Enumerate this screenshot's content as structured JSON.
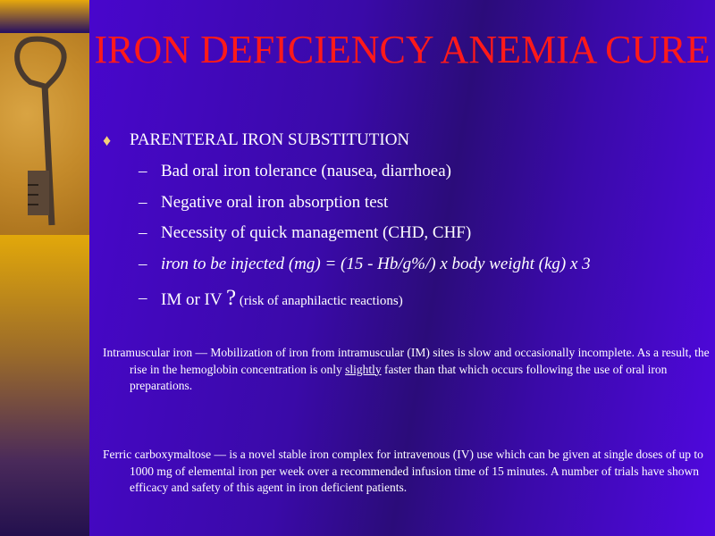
{
  "title": "IRON DEFICIENCY ANEMIA CURE",
  "bullet": "PARENTERAL IRON SUBSTITUTION",
  "sub_items": [
    "Bad oral iron tolerance  (nausea, diarrhoea)",
    "Negative oral iron absorption test",
    "Necessity of quick management (CHD, CHF)",
    "iron to be injected (mg) = (15  - Hb/g%/) x body weight (kg) x 3"
  ],
  "last_item": {
    "main": "IM or IV ",
    "q": "?",
    "note": " (risk of anaphilactic reactions)"
  },
  "para1": {
    "before": "Intramuscular iron — Mobilization of iron from intramuscular (IM) sites is slow and occasionally incomplete. As a result, the rise in the hemoglobin concentration is only ",
    "underlined": "slightly",
    "after": " faster than that which occurs following the use of oral iron preparations."
  },
  "para2": "Ferric carboxymaltose — is a novel stable iron complex for intravenous (IV) use which can be given at single doses of up to 1000 mg of elemental iron per week over a recommended infusion time of 15 minutes. A number of trials have shown efficacy and safety of this agent in iron deficient patients.",
  "colors": {
    "title": "#ff1a1a",
    "bullet": "#f4cf7a",
    "background": "#4d05d8"
  }
}
